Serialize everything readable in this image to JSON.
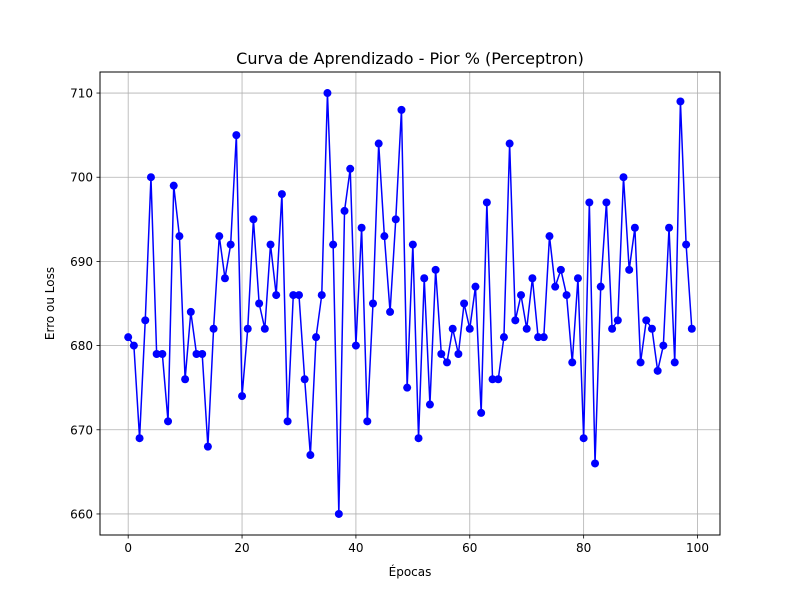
{
  "chart_data": {
    "type": "line",
    "title": "Curva de Aprendizado - Pior % (Perceptron)",
    "xlabel": "Épocas",
    "ylabel": "Erro ou Loss",
    "xlim": [
      -4.95,
      103.95
    ],
    "ylim": [
      657.5,
      712.5
    ],
    "xticks": [
      0,
      20,
      40,
      60,
      80,
      100
    ],
    "yticks": [
      660,
      670,
      680,
      690,
      700,
      710
    ],
    "grid": true,
    "series": [
      {
        "color": "#0000ff",
        "marker": "circle",
        "x": [
          0,
          1,
          2,
          3,
          4,
          5,
          6,
          7,
          8,
          9,
          10,
          11,
          12,
          13,
          14,
          15,
          16,
          17,
          18,
          19,
          20,
          21,
          22,
          23,
          24,
          25,
          26,
          27,
          28,
          29,
          30,
          31,
          32,
          33,
          34,
          35,
          36,
          37,
          38,
          39,
          40,
          41,
          42,
          43,
          44,
          45,
          46,
          47,
          48,
          49,
          50,
          51,
          52,
          53,
          54,
          55,
          56,
          57,
          58,
          59,
          60,
          61,
          62,
          63,
          64,
          65,
          66,
          67,
          68,
          69,
          70,
          71,
          72,
          73,
          74,
          75,
          76,
          77,
          78,
          79,
          80,
          81,
          82,
          83,
          84,
          85,
          86,
          87,
          88,
          89,
          90,
          91,
          92,
          93,
          94,
          95,
          96,
          97,
          98,
          99
        ],
        "values": [
          681,
          680,
          669,
          683,
          700,
          679,
          679,
          671,
          699,
          693,
          676,
          684,
          679,
          679,
          668,
          682,
          693,
          688,
          692,
          705,
          674,
          682,
          695,
          685,
          682,
          692,
          686,
          698,
          671,
          686,
          686,
          676,
          667,
          681,
          686,
          710,
          692,
          660,
          696,
          701,
          680,
          694,
          671,
          685,
          704,
          693,
          684,
          695,
          708,
          675,
          692,
          669,
          688,
          673,
          689,
          679,
          678,
          682,
          679,
          685,
          682,
          687,
          672,
          697,
          676,
          676,
          681,
          704,
          683,
          686,
          682,
          688,
          681,
          681,
          693,
          687,
          689,
          686,
          678,
          688,
          669,
          697,
          666,
          687,
          697,
          682,
          683,
          700,
          689,
          694,
          678,
          683,
          682,
          677,
          680,
          694,
          678,
          709,
          692,
          682
        ]
      }
    ]
  }
}
